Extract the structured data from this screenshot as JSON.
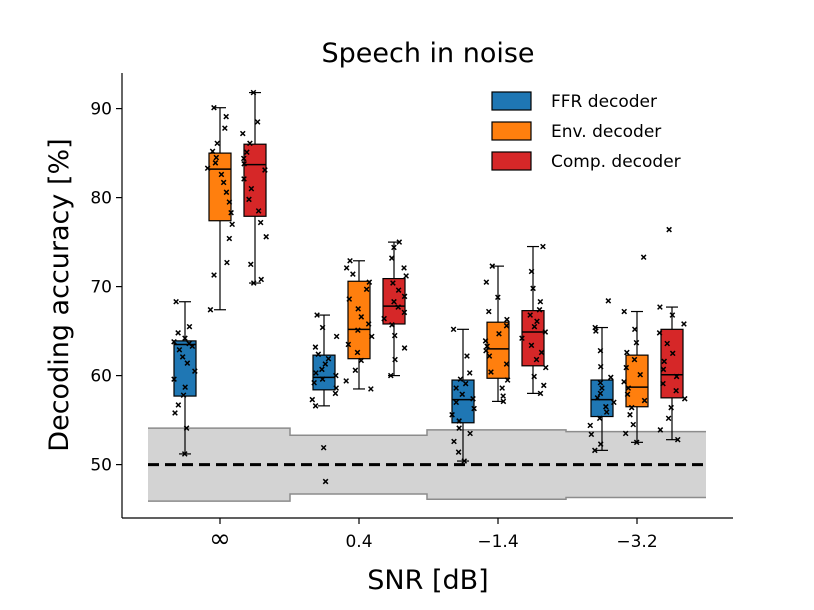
{
  "chart_data": {
    "type": "box",
    "title": "Speech in noise",
    "xlabel": "SNR [dB]",
    "ylabel": "Decoding accuracy [%]",
    "categories": [
      "∞",
      "0.4",
      "−1.4",
      "−3.2"
    ],
    "ylim": [
      44,
      94
    ],
    "yticks": [
      50,
      60,
      70,
      80,
      90
    ],
    "legend_position": "top-right",
    "chance_level": 50,
    "chance_band": [
      {
        "lower": 45.9,
        "upper": 54.1
      },
      {
        "lower": 46.7,
        "upper": 53.3
      },
      {
        "lower": 46.1,
        "upper": 53.9
      },
      {
        "lower": 46.3,
        "upper": 53.7
      }
    ],
    "series": [
      {
        "name": "FFR decoder",
        "color": "#1f77b4",
        "boxes": [
          {
            "q1": 57.7,
            "median": 63.5,
            "q3": 63.9,
            "whisker_low": 51.2,
            "whisker_high": 68.3,
            "points": [
              51.2,
              54.1,
              55.8,
              56.7,
              57.8,
              58.7,
              59.6,
              60.5,
              61.4,
              62.1,
              62.9,
              63.3,
              63.6,
              63.8,
              64.2,
              64.8,
              65.5,
              68.3
            ]
          },
          {
            "q1": 58.4,
            "median": 59.8,
            "q3": 62.3,
            "whisker_low": 56.6,
            "whisker_high": 66.8,
            "points": [
              48.1,
              51.9,
              56.6,
              57.3,
              58.0,
              58.6,
              59.2,
              59.6,
              60.0,
              60.3,
              60.7,
              61.3,
              61.9,
              62.4,
              63.2,
              64.4,
              65.4,
              66.8
            ]
          },
          {
            "q1": 54.7,
            "median": 57.3,
            "q3": 59.5,
            "whisker_low": 50.4,
            "whisker_high": 65.2,
            "points": [
              50.4,
              51.4,
              52.6,
              53.5,
              54.1,
              54.9,
              55.6,
              56.3,
              57.0,
              57.4,
              57.9,
              58.6,
              59.1,
              59.6,
              60.3,
              62.2,
              65.2
            ]
          },
          {
            "q1": 55.4,
            "median": 57.3,
            "q3": 59.5,
            "whisker_low": 51.6,
            "whisker_high": 65.4,
            "points": [
              51.6,
              52.3,
              53.4,
              54.4,
              55.2,
              55.9,
              56.5,
              57.0,
              57.5,
              58.0,
              58.6,
              59.2,
              59.8,
              61.0,
              62.8,
              65.0,
              65.4,
              68.4
            ]
          }
        ]
      },
      {
        "name": "Env. decoder",
        "color": "#ff7f0e",
        "boxes": [
          {
            "q1": 77.4,
            "median": 83.2,
            "q3": 85.0,
            "whisker_low": 67.4,
            "whisker_high": 90.1,
            "points": [
              67.4,
              71.3,
              72.7,
              75.4,
              77.0,
              78.3,
              79.5,
              80.6,
              81.7,
              82.6,
              83.3,
              83.9,
              84.5,
              85.2,
              86.1,
              87.8,
              89.1,
              90.1
            ]
          },
          {
            "q1": 61.9,
            "median": 65.2,
            "q3": 70.6,
            "whisker_low": 58.5,
            "whisker_high": 72.9,
            "points": [
              58.5,
              59.4,
              60.6,
              61.7,
              62.6,
              63.5,
              64.4,
              65.1,
              65.8,
              66.6,
              67.5,
              68.6,
              69.7,
              70.5,
              71.4,
              72.1,
              72.9
            ]
          },
          {
            "q1": 59.7,
            "median": 63.0,
            "q3": 66.0,
            "whisker_low": 57.1,
            "whisker_high": 72.3,
            "points": [
              57.1,
              57.7,
              58.6,
              59.5,
              60.4,
              61.3,
              62.2,
              62.8,
              63.3,
              63.9,
              64.7,
              65.6,
              66.3,
              67.2,
              68.8,
              70.5,
              72.3
            ]
          },
          {
            "q1": 56.5,
            "median": 58.7,
            "q3": 62.3,
            "whisker_low": 52.5,
            "whisker_high": 67.2,
            "points": [
              52.5,
              53.5,
              54.5,
              55.6,
              56.4,
              57.2,
              57.9,
              58.6,
              59.3,
              60.1,
              60.9,
              61.8,
              62.6,
              63.7,
              65.2,
              67.2,
              73.3
            ]
          }
        ]
      },
      {
        "name": "Comp. decoder",
        "color": "#d62728",
        "boxes": [
          {
            "q1": 77.9,
            "median": 83.7,
            "q3": 86.0,
            "whisker_low": 70.4,
            "whisker_high": 91.8,
            "points": [
              70.4,
              70.8,
              72.5,
              75.6,
              77.2,
              78.5,
              79.8,
              81.0,
              82.1,
              83.1,
              83.8,
              84.4,
              85.1,
              86.1,
              87.2,
              88.5,
              91.8
            ]
          },
          {
            "q1": 65.8,
            "median": 67.8,
            "q3": 70.9,
            "whisker_low": 60.0,
            "whisker_high": 75.0,
            "points": [
              60.0,
              61.8,
              63.1,
              64.5,
              65.7,
              66.4,
              67.1,
              67.7,
              68.3,
              68.9,
              69.6,
              70.4,
              71.2,
              72.1,
              73.2,
              74.4,
              75.0
            ]
          },
          {
            "q1": 61.1,
            "median": 64.9,
            "q3": 67.3,
            "whisker_low": 58.0,
            "whisker_high": 74.5,
            "points": [
              58.0,
              58.9,
              59.9,
              60.9,
              61.8,
              62.6,
              63.4,
              64.2,
              64.9,
              65.5,
              66.1,
              66.8,
              67.4,
              68.3,
              69.8,
              71.7,
              74.5
            ]
          },
          {
            "q1": 57.5,
            "median": 60.1,
            "q3": 65.2,
            "whisker_low": 52.8,
            "whisker_high": 67.7,
            "points": [
              52.8,
              53.9,
              55.2,
              56.4,
              57.4,
              58.3,
              59.1,
              59.9,
              60.7,
              61.6,
              62.5,
              63.6,
              64.8,
              65.8,
              66.8,
              67.7,
              76.4
            ]
          }
        ]
      }
    ]
  }
}
